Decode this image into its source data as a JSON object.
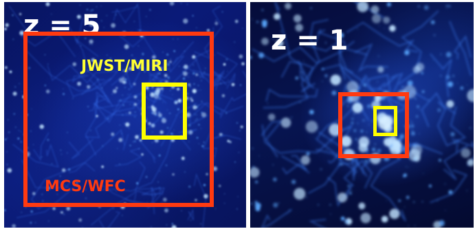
{
  "panels": {
    "left": {
      "redshift_label": "z = 5",
      "jwst_label": "JWST/MIRI",
      "mcs_label": "MCS/WFC"
    },
    "right": {
      "redshift_label": "z = 1"
    }
  },
  "colors": {
    "mcs_box": "#ff3a10",
    "jwst_box": "#ffff00",
    "mcs_text": "#ff3a10",
    "jwst_text": "#ffff33",
    "label_text": "#ffffff",
    "galaxy_glow": "#5aa8ff"
  }
}
